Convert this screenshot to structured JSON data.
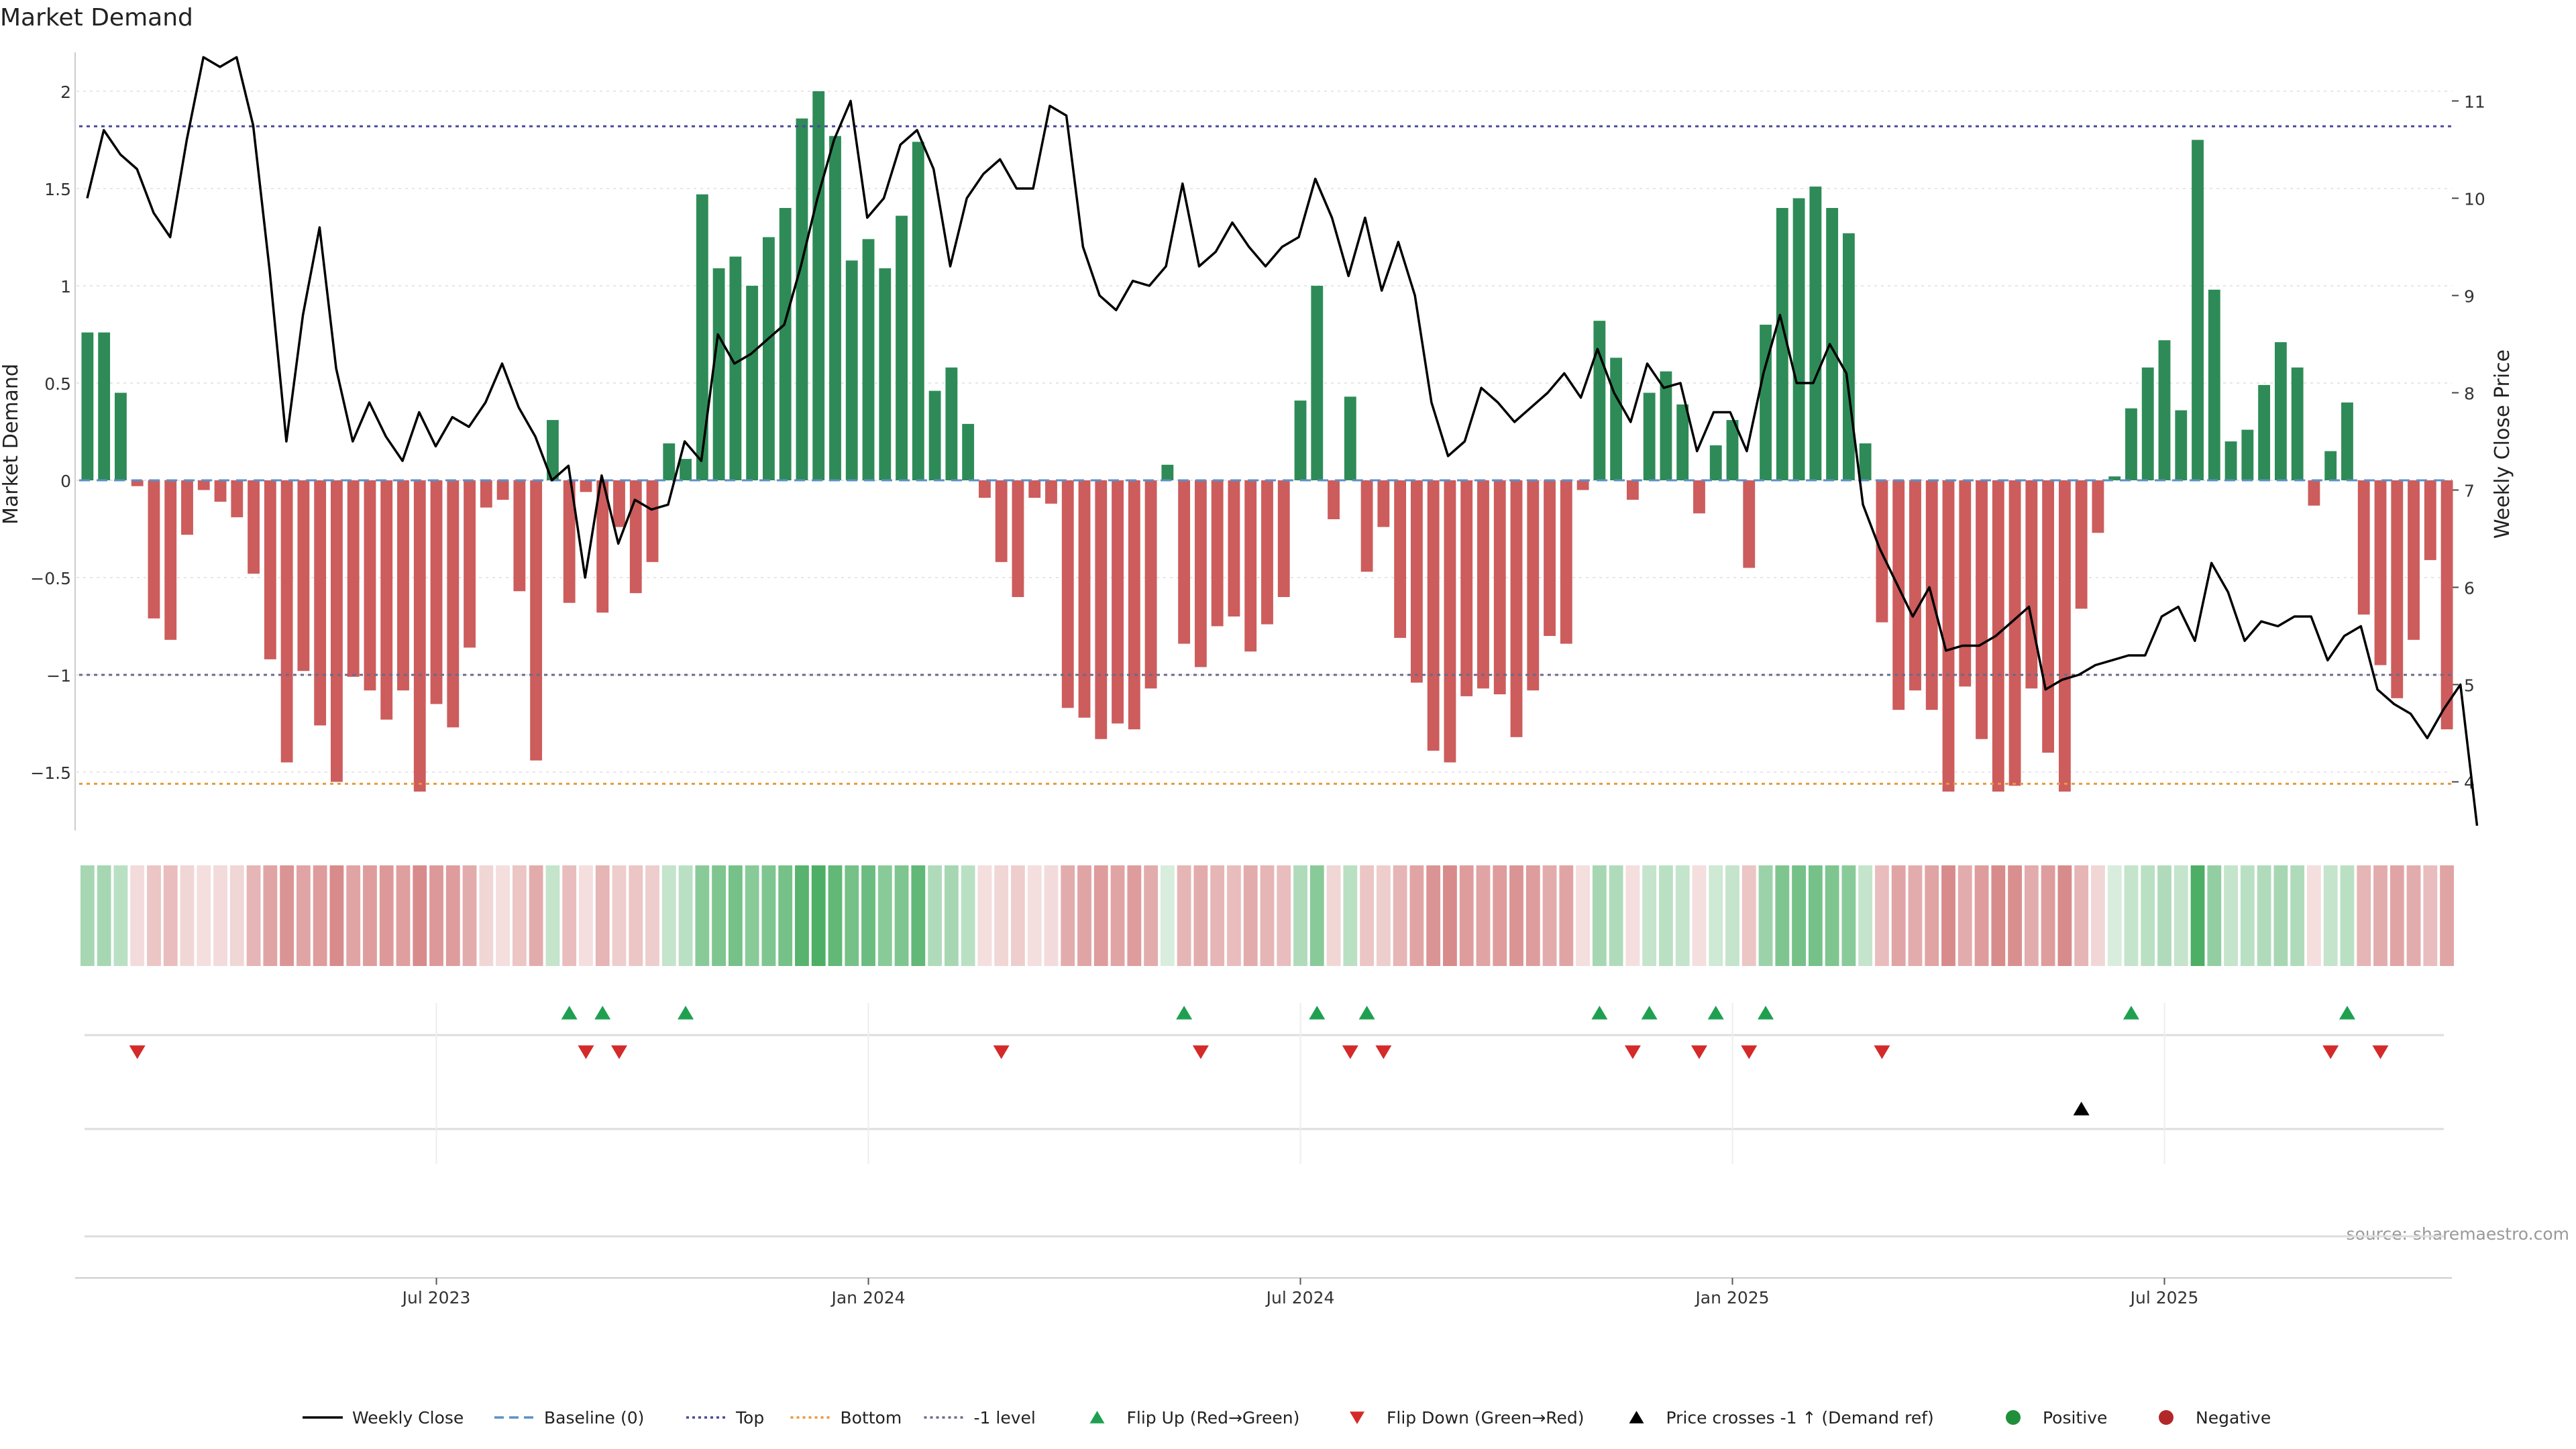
{
  "chart_data": {
    "type": "bar",
    "title": "Market Demand",
    "ylabel": "Market Demand",
    "y2label": "Weekly Close Price",
    "source": "source: sharemaestro.com",
    "ylim": [
      -1.8,
      2.2
    ],
    "y2lim": [
      3.5,
      11.5
    ],
    "yticks": [
      {
        "v": 2,
        "label": "2"
      },
      {
        "v": 1.5,
        "label": "1.5"
      },
      {
        "v": 1,
        "label": "1"
      },
      {
        "v": 0.5,
        "label": "0.5"
      },
      {
        "v": 0,
        "label": "0"
      },
      {
        "v": -0.5,
        "label": "−0.5"
      },
      {
        "v": -1,
        "label": "−1"
      },
      {
        "v": -1.5,
        "label": "−1.5"
      }
    ],
    "y2ticks": [
      {
        "v": 11,
        "label": "11"
      },
      {
        "v": 10,
        "label": "10"
      },
      {
        "v": 9,
        "label": "9"
      },
      {
        "v": 8,
        "label": "8"
      },
      {
        "v": 7,
        "label": "7"
      },
      {
        "v": 6,
        "label": "6"
      },
      {
        "v": 5,
        "label": "5"
      },
      {
        "v": 4,
        "label": "4"
      }
    ],
    "xticks": [
      {
        "i": 21,
        "label": "Jul 2023"
      },
      {
        "i": 47,
        "label": "Jan 2024"
      },
      {
        "i": 73,
        "label": "Jul 2024"
      },
      {
        "i": 99,
        "label": "Jan 2025"
      },
      {
        "i": 125,
        "label": "Jul 2025"
      }
    ],
    "levels": {
      "top": 1.82,
      "bottom": -1.56,
      "minus_one": -1.0
    },
    "demand": [
      0.76,
      0.76,
      0.45,
      -0.03,
      -0.71,
      -0.82,
      -0.28,
      -0.05,
      -0.11,
      -0.19,
      -0.48,
      -0.92,
      -1.45,
      -0.98,
      -1.26,
      -1.55,
      -1.01,
      -1.08,
      -1.23,
      -1.08,
      -1.6,
      -1.15,
      -1.27,
      -0.86,
      -0.14,
      -0.1,
      -0.57,
      -1.44,
      0.31,
      -0.63,
      -0.06,
      -0.68,
      -0.24,
      -0.58,
      -0.42,
      0.19,
      0.11,
      1.47,
      1.09,
      1.15,
      1.0,
      1.25,
      1.4,
      1.86,
      2.0,
      1.77,
      1.13,
      1.24,
      1.09,
      1.36,
      1.74,
      0.46,
      0.58,
      0.29,
      -0.09,
      -0.42,
      -0.6,
      -0.09,
      -0.12,
      -1.17,
      -1.22,
      -1.33,
      -1.25,
      -1.28,
      -1.07,
      0.08,
      -0.84,
      -0.96,
      -0.75,
      -0.7,
      -0.88,
      -0.74,
      -0.6,
      0.41,
      1.0,
      -0.2,
      0.43,
      -0.47,
      -0.24,
      -0.81,
      -1.04,
      -1.39,
      -1.45,
      -1.11,
      -1.07,
      -1.1,
      -1.32,
      -1.08,
      -0.8,
      -0.84,
      -0.05,
      0.82,
      0.63,
      -0.1,
      0.45,
      0.56,
      0.39,
      -0.17,
      0.18,
      0.31,
      -0.45,
      0.8,
      1.4,
      1.45,
      1.51,
      1.4,
      1.27,
      0.19,
      -0.73,
      -1.18,
      -1.08,
      -1.18,
      -1.6,
      -1.06,
      -1.33,
      -1.6,
      -1.57,
      -1.07,
      -1.4,
      -1.6,
      -0.66,
      -0.27,
      0.02,
      0.37,
      0.58,
      0.72,
      0.36,
      1.75,
      0.98,
      0.2,
      0.26,
      0.49,
      0.71,
      0.58,
      -0.13,
      0.15,
      0.4,
      -0.69,
      -0.95,
      -1.12,
      -0.82,
      -0.41,
      -1.28
    ],
    "close": [
      10.0,
      10.7,
      10.45,
      10.3,
      9.85,
      9.6,
      10.6,
      11.45,
      11.35,
      11.45,
      10.75,
      9.25,
      7.5,
      8.8,
      9.7,
      8.25,
      7.5,
      7.9,
      7.55,
      7.3,
      7.8,
      7.45,
      7.75,
      7.65,
      7.9,
      8.3,
      7.85,
      7.55,
      7.1,
      7.25,
      6.1,
      7.15,
      6.45,
      6.9,
      6.8,
      6.85,
      7.5,
      7.3,
      8.6,
      8.3,
      8.4,
      8.55,
      8.7,
      9.3,
      10.0,
      10.6,
      11.0,
      9.8,
      10.0,
      10.55,
      10.7,
      10.3,
      9.3,
      10.0,
      10.25,
      10.4,
      10.1,
      10.1,
      10.95,
      10.85,
      9.5,
      9.0,
      8.85,
      9.15,
      9.1,
      9.3,
      10.15,
      9.3,
      9.45,
      9.75,
      9.5,
      9.3,
      9.5,
      9.6,
      10.2,
      9.8,
      9.2,
      9.8,
      9.05,
      9.55,
      9.0,
      7.9,
      7.35,
      7.5,
      8.05,
      7.9,
      7.7,
      7.85,
      8.0,
      8.2,
      7.95,
      8.45,
      8.0,
      7.7,
      8.3,
      8.05,
      8.1,
      7.4,
      7.8,
      7.8,
      7.4,
      8.2,
      8.8,
      8.1,
      8.1,
      8.5,
      8.2,
      6.85,
      6.4,
      6.05,
      5.7,
      6.0,
      5.35,
      5.4,
      5.4,
      5.5,
      5.65,
      5.8,
      4.95,
      5.05,
      5.1,
      5.2,
      5.25,
      5.3,
      5.3,
      5.7,
      5.8,
      5.45,
      6.25,
      5.95,
      5.45,
      5.65,
      5.6,
      5.7,
      5.7,
      5.25,
      5.5,
      5.6,
      4.95,
      4.8,
      4.7,
      4.45,
      4.75,
      5.0,
      3.55
    ],
    "band": [
      0.45,
      0.45,
      0.35,
      0.22,
      0.35,
      0.4,
      0.25,
      0.2,
      0.22,
      0.25,
      0.45,
      0.55,
      0.65,
      0.55,
      0.6,
      0.7,
      0.55,
      0.6,
      0.62,
      0.58,
      0.7,
      0.62,
      0.6,
      0.5,
      0.25,
      0.2,
      0.35,
      0.5,
      0.3,
      0.4,
      0.2,
      0.45,
      0.3,
      0.35,
      0.3,
      0.3,
      0.35,
      0.6,
      0.65,
      0.7,
      0.6,
      0.65,
      0.7,
      0.85,
      0.9,
      0.8,
      0.7,
      0.75,
      0.6,
      0.65,
      0.8,
      0.4,
      0.45,
      0.35,
      0.2,
      0.25,
      0.3,
      0.2,
      0.22,
      0.5,
      0.55,
      0.6,
      0.55,
      0.6,
      0.5,
      0.2,
      0.45,
      0.5,
      0.45,
      0.4,
      0.5,
      0.45,
      0.4,
      0.4,
      0.6,
      0.25,
      0.35,
      0.35,
      0.3,
      0.45,
      0.55,
      0.65,
      0.7,
      0.6,
      0.55,
      0.6,
      0.65,
      0.6,
      0.5,
      0.55,
      0.2,
      0.45,
      0.4,
      0.2,
      0.3,
      0.35,
      0.3,
      0.2,
      0.25,
      0.3,
      0.35,
      0.5,
      0.65,
      0.7,
      0.7,
      0.65,
      0.6,
      0.3,
      0.4,
      0.55,
      0.5,
      0.55,
      0.7,
      0.5,
      0.6,
      0.7,
      0.68,
      0.5,
      0.6,
      0.7,
      0.45,
      0.25,
      0.2,
      0.3,
      0.35,
      0.4,
      0.3,
      0.9,
      0.55,
      0.3,
      0.35,
      0.4,
      0.45,
      0.4,
      0.2,
      0.3,
      0.35,
      0.45,
      0.5,
      0.55,
      0.5,
      0.4,
      0.55
    ],
    "flip_up": [
      29,
      31,
      36,
      66,
      74,
      77,
      91,
      94,
      98,
      101,
      123,
      136
    ],
    "flip_down": [
      3,
      30,
      32,
      55,
      67,
      76,
      78,
      93,
      97,
      100,
      108,
      135,
      138
    ],
    "price_cross": [
      120
    ],
    "legend": [
      {
        "label": "Weekly Close",
        "kind": "line",
        "color": "#000000"
      },
      {
        "label": "Baseline (0)",
        "kind": "dash",
        "color": "#5b8fc9"
      },
      {
        "label": "Top",
        "kind": "dot",
        "color": "#4a4a9a"
      },
      {
        "label": "Bottom",
        "kind": "dot",
        "color": "#e69a3a"
      },
      {
        "label": "-1 level",
        "kind": "dot",
        "color": "#6a6a8a"
      },
      {
        "label": "Flip Up (Red→Green)",
        "kind": "tri-up",
        "color": "#1fa050"
      },
      {
        "label": "Flip Down (Green→Red)",
        "kind": "tri-down",
        "color": "#d42a2a"
      },
      {
        "label": "Price crosses -1 ↑ (Demand ref)",
        "kind": "tri-up",
        "color": "#000000"
      },
      {
        "label": "Positive",
        "kind": "dot-marker",
        "color": "#1f8f3a"
      },
      {
        "label": "Negative",
        "kind": "dot-marker",
        "color": "#b22828"
      }
    ],
    "colors": {
      "positive": "#2e8b57",
      "negative": "#cd5c5c",
      "band_pos": "#3aa655",
      "band_neg": "#c85a5a",
      "flip_up": "#1fa050",
      "flip_down": "#d42a2a"
    }
  }
}
